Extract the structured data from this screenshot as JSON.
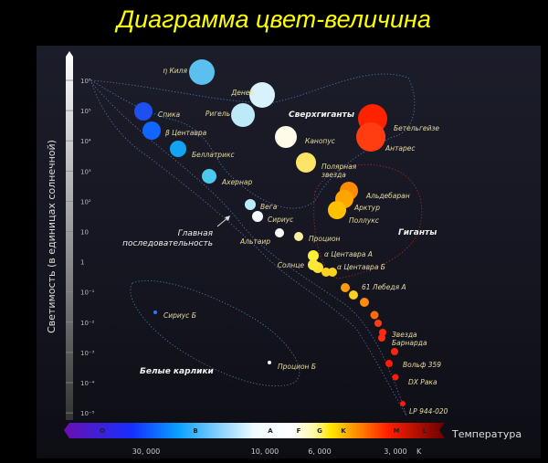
{
  "title": "Диаграмма цвет-величина",
  "y_axis": {
    "label": "Светимость (в единицах солнечной)",
    "ticks": [
      "10⁶",
      "10⁵",
      "10⁴",
      "10³",
      "10²",
      "10",
      "1",
      "10⁻¹",
      "10⁻²",
      "10⁻³",
      "10⁻⁴",
      "10⁻⁵"
    ]
  },
  "x_axis": {
    "label": "Температура",
    "unit": "K",
    "ticks": [
      "30, 000",
      "10, 000",
      "6, 000",
      "3, 000"
    ],
    "spectral_classes": [
      "O",
      "B",
      "A",
      "F",
      "G",
      "K",
      "M",
      "L"
    ]
  },
  "regions": {
    "supergiants": "Сверхгиганты",
    "giants": "Гиганты",
    "main_sequence_1": "Главная",
    "main_sequence_2": "последовательность",
    "white_dwarfs": "Белые карлики"
  },
  "stars": [
    {
      "name": "η Киля",
      "color": "#5bc0ee"
    },
    {
      "name": "Денеб",
      "color": "#d8f2fb"
    },
    {
      "name": "Ригель",
      "color": "#bde9f8"
    },
    {
      "name": "Спика",
      "color": "#1e50f0"
    },
    {
      "name": "β Центавра",
      "color": "#1166ff"
    },
    {
      "name": "Беллатрикс",
      "color": "#12a4f2"
    },
    {
      "name": "Ахернар",
      "color": "#4cc8ef"
    },
    {
      "name": "Вега",
      "color": "#b9ecfb"
    },
    {
      "name": "Сириус",
      "color": "#f3f9ff"
    },
    {
      "name": "Альтаир",
      "color": "#ffffff"
    },
    {
      "name": "Процион",
      "color": "#f8f0a0"
    },
    {
      "name": "Канопус",
      "color": "#fefbe8"
    },
    {
      "name": "Полярная звезда",
      "color": "#fbe466"
    },
    {
      "name": "Бетельгейзе",
      "color": "#ff2200"
    },
    {
      "name": "Антарес",
      "color": "#ff3d10"
    },
    {
      "name": "Альдебаран",
      "color": "#ff8c00"
    },
    {
      "name": "Арктур",
      "color": "#ffa500"
    },
    {
      "name": "Поллукс",
      "color": "#ffc000"
    },
    {
      "name": "α Центавра А",
      "color": "#fbef3a"
    },
    {
      "name": "Солнце",
      "color": "#fbe93a"
    },
    {
      "name": "α Центавра Б",
      "color": "#fbd020"
    },
    {
      "name": "61 Лебедя А",
      "color": "#ff9a10"
    },
    {
      "name": "Звезда Барнарда",
      "color": "#ff2a10"
    },
    {
      "name": "Вольф 359",
      "color": "#ff1a0a"
    },
    {
      "name": "DX Рака",
      "color": "#ff1a0a"
    },
    {
      "name": "LP 944-020",
      "color": "#ff1a0a"
    },
    {
      "name": "Сириус Б",
      "color": "#2a7bff"
    },
    {
      "name": "Процион Б",
      "color": "#ffffff"
    }
  ],
  "unlabeled_star_colors": [
    "#fde030",
    "#fbd020",
    "#fbd020",
    "#ff8c10",
    "#ff6a10",
    "#ff3a18",
    "#ff2a10",
    "#ff2410"
  ]
}
